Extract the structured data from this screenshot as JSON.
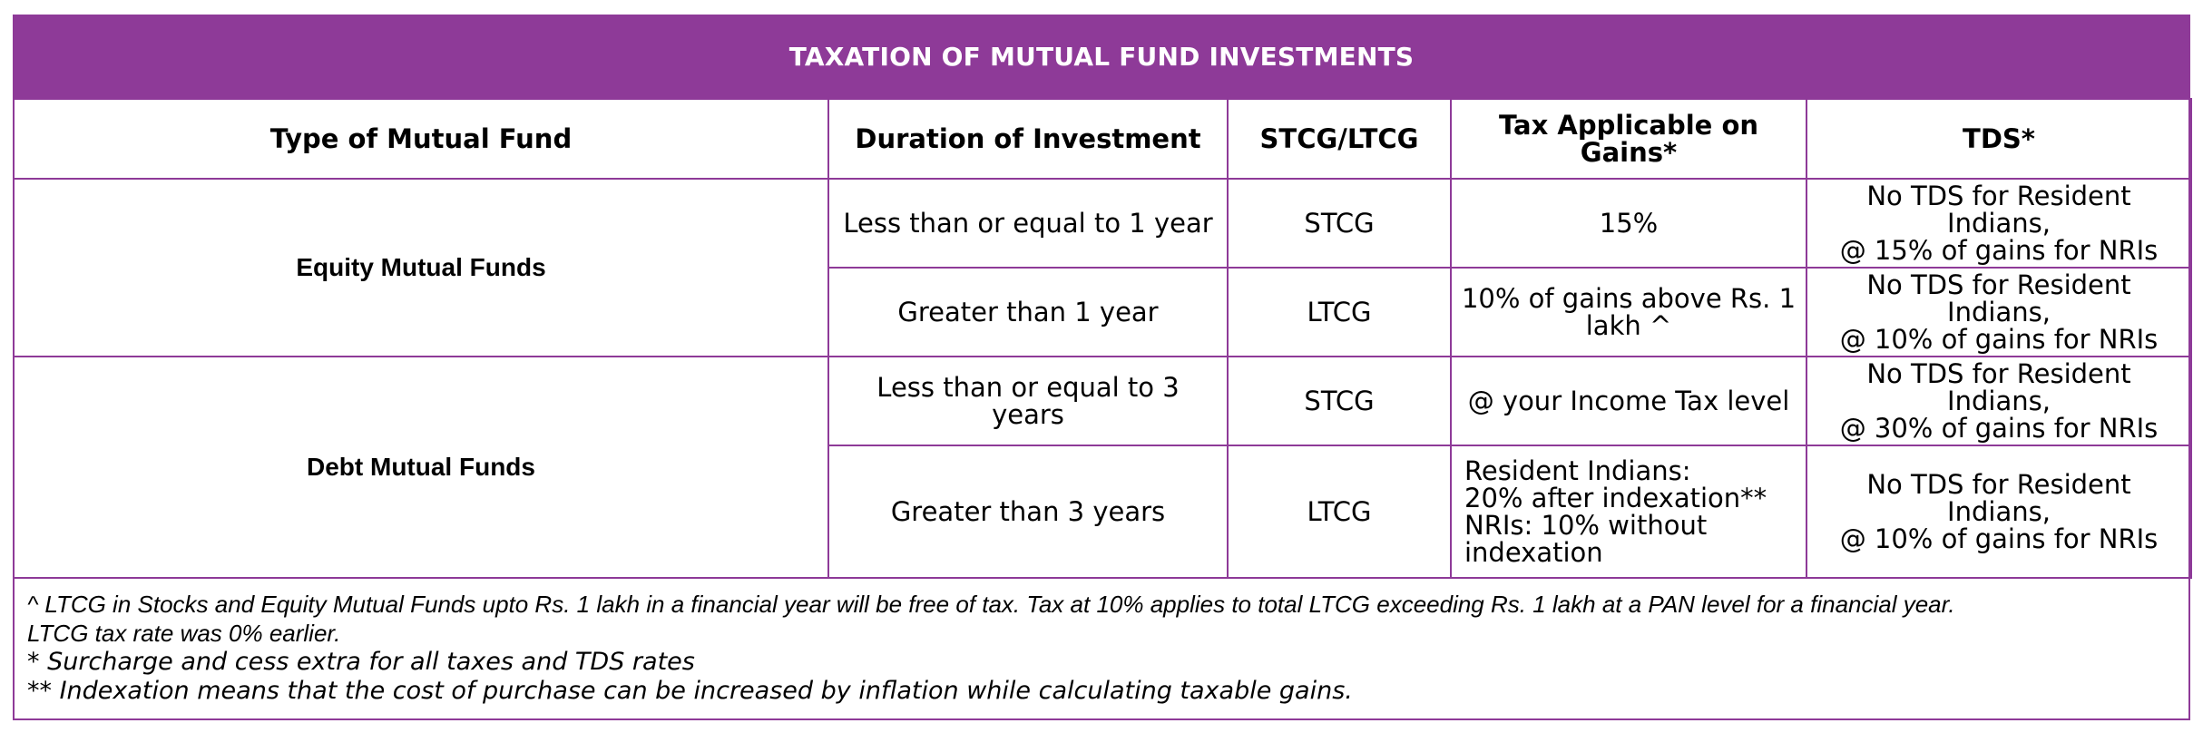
{
  "title": "TAXATION OF MUTUAL FUND INVESTMENTS",
  "headers": {
    "type": "Type of Mutual Fund",
    "duration": "Duration of Investment",
    "stcg_ltcg": "STCG/LTCG",
    "tax": "Tax Applicable on Gains*",
    "tds": "TDS*"
  },
  "groups": [
    {
      "fund_type": "Equity Mutual Funds",
      "rows": [
        {
          "duration": "Less than or equal to 1 year",
          "gain_type": "STCG",
          "tax": "15%",
          "tds": [
            "No TDS for Resident Indians,",
            "@ 15% of gains for NRIs"
          ]
        },
        {
          "duration": "Greater than 1 year",
          "gain_type": "LTCG",
          "tax": "10% of gains above Rs. 1 lakh ^",
          "tds": [
            "No TDS for Resident Indians,",
            "@ 10% of gains for NRIs"
          ]
        }
      ]
    },
    {
      "fund_type": "Debt Mutual Funds",
      "rows": [
        {
          "duration": "Less than or equal to 3 years",
          "gain_type": "STCG",
          "tax": "@ your Income Tax level",
          "tds": [
            "No TDS for Resident Indians,",
            "@ 30% of gains for NRIs"
          ]
        },
        {
          "duration": "Greater than 3 years",
          "gain_type": "LTCG",
          "tax_lines": [
            "Resident Indians:",
            "20% after indexation**",
            "NRIs: 10% without",
            "indexation"
          ],
          "tds": [
            "No TDS for Resident Indians,",
            "@ 10% of gains for NRIs"
          ]
        }
      ]
    }
  ],
  "notes": [
    "^ LTCG in Stocks and Equity Mutual Funds upto Rs. 1 lakh in a financial year will be free of tax. Tax at 10% applies to total LTCG exceeding Rs. 1 lakh at a PAN level for a financial year.",
    "LTCG tax rate was 0% earlier.",
    "* Surcharge and cess extra for all taxes and TDS rates",
    "** Indexation means that the cost of purchase can be increased by inflation while calculating taxable gains."
  ],
  "colors": {
    "accent": "#8e3a98",
    "header_text": "#ffffff"
  }
}
